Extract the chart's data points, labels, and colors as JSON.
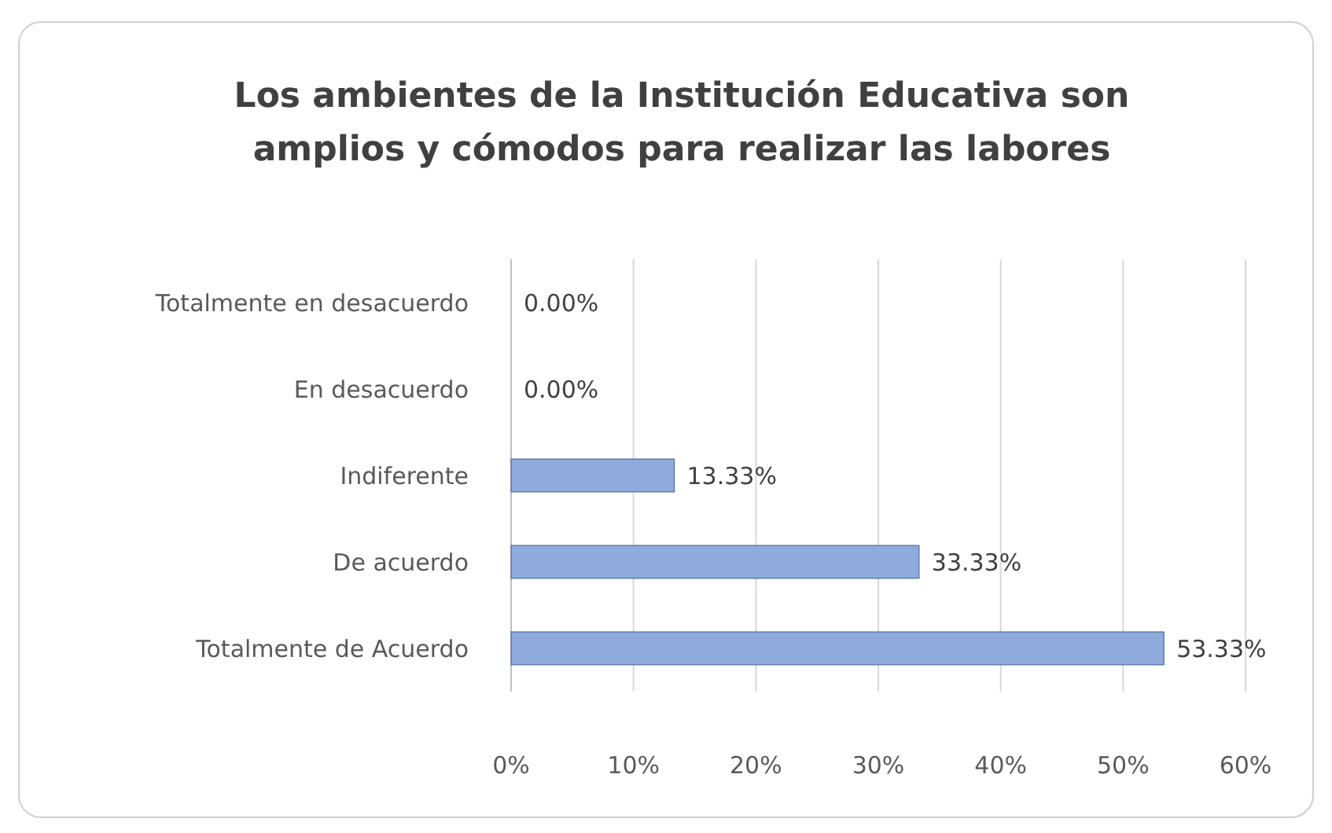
{
  "chart_data": {
    "type": "bar",
    "orientation": "horizontal",
    "title": "Los ambientes de la Institución Educativa son amplios y cómodos para realizar las labores",
    "categories": [
      "Totalmente en desacuerdo",
      "En desacuerdo",
      "Indiferente",
      "De acuerdo",
      "Totalmente de Acuerdo"
    ],
    "values": [
      0,
      0,
      13.33,
      33.33,
      53.33
    ],
    "color": "#8faadc",
    "value_labels": [
      "0.00%",
      "0.00%",
      "13.33%",
      "33.33%",
      "53.33%"
    ],
    "xlim": [
      0,
      60
    ],
    "xticks": [
      {
        "value": 0,
        "label": "0%"
      },
      {
        "value": 10,
        "label": "10%"
      },
      {
        "value": 20,
        "label": "20%"
      },
      {
        "value": 30,
        "label": "30%"
      },
      {
        "value": 40,
        "label": "40%"
      },
      {
        "value": 50,
        "label": "50%"
      },
      {
        "value": 60,
        "label": "60%"
      }
    ],
    "grid": "x"
  }
}
